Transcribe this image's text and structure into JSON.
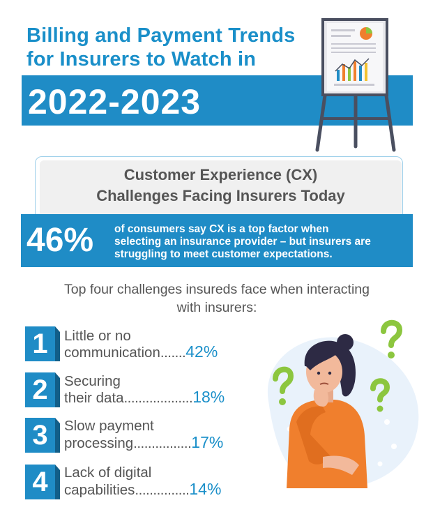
{
  "title": {
    "line1": "Billing and Payment Trends",
    "line2": "for Insurers to Watch in",
    "year": "2022-2023"
  },
  "cx": {
    "heading_line1": "Customer Experience (CX)",
    "heading_line2": "Challenges Facing Insurers Today",
    "stat_value": "46%",
    "stat_line1": "of consumers say CX is a top factor when",
    "stat_line2": "selecting an insurance provider – but insurers are",
    "stat_line3": "struggling to meet customer expectations."
  },
  "intro": {
    "line1": "Top four challenges insureds face when interacting",
    "line2": "with insurers:"
  },
  "challenges": [
    {
      "num": "1",
      "line1": "Little or no",
      "line2": "communication",
      "dots": ".......",
      "pct": "42%"
    },
    {
      "num": "2",
      "line1": "Securing",
      "line2": "their data",
      "dots": "...................",
      "pct": "18%"
    },
    {
      "num": "3",
      "line1": "Slow payment",
      "line2": "processing",
      "dots": "................",
      "pct": "17%"
    },
    {
      "num": "4",
      "line1": "Lack of digital",
      "line2": "capabilities",
      "dots": "...............",
      "pct": "14%"
    }
  ],
  "colors": {
    "brand_blue": "#1f8cc6",
    "text_gray": "#555555",
    "accent_orange": "#f07f2d",
    "accent_green": "#8cc63f"
  }
}
